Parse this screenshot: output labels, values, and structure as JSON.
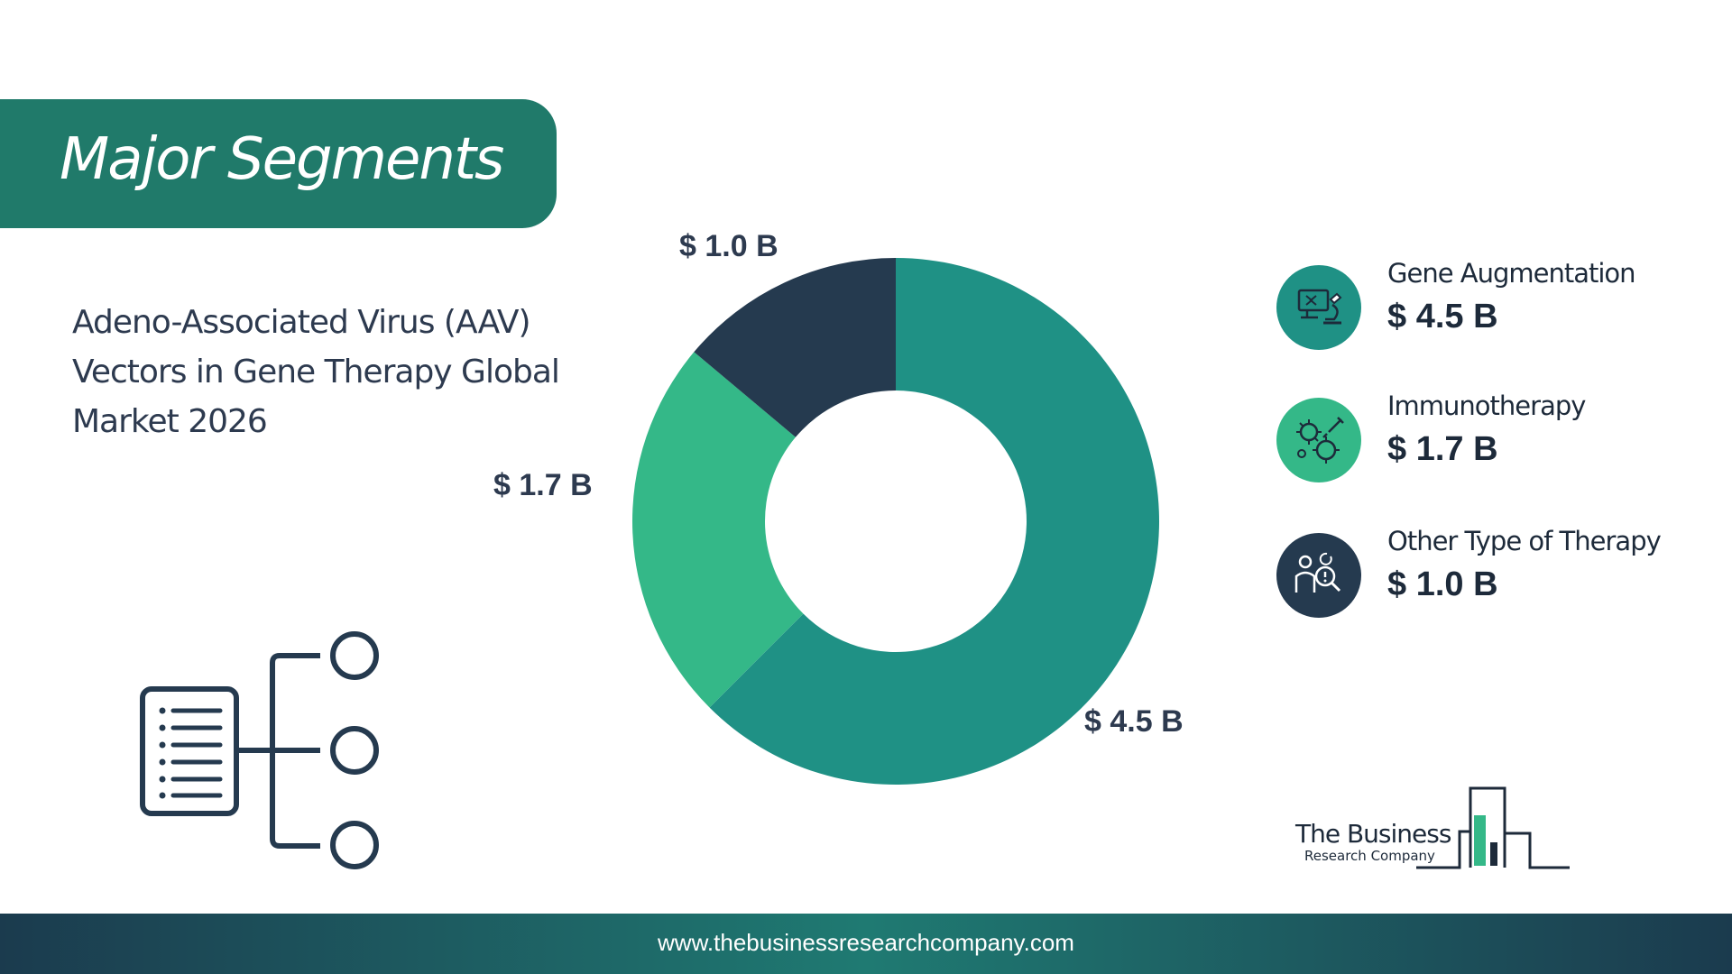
{
  "header": {
    "title": "Major Segments"
  },
  "subtitle": {
    "lines": [
      "Adeno-Associated Virus (AAV)",
      "Vectors in Gene Therapy Global",
      "Market 2026"
    ]
  },
  "chart_data": {
    "type": "pie",
    "donut": true,
    "categories": [
      "Gene Augmentation",
      "Immunotherapy",
      "Other Type of Therapy"
    ],
    "values": [
      4.5,
      1.7,
      1.0
    ],
    "unit": "$ B",
    "data_labels": [
      "$ 4.5 B",
      "$ 1.7 B",
      "$ 1.0 B"
    ],
    "colors": [
      "#1f9185",
      "#34b888",
      "#253a4f"
    ],
    "legend_placement": "right"
  },
  "legend": [
    {
      "name": "Gene Augmentation",
      "value": "$ 4.5 B",
      "icon": "microscope-monitor-icon",
      "color": "#1f9185"
    },
    {
      "name": "Immunotherapy",
      "value": "$ 1.7 B",
      "icon": "virus-syringe-icon",
      "color": "#34b888"
    },
    {
      "name": " Other Type of Therapy",
      "value": "$ 1.0 B",
      "icon": "person-magnifier-icon",
      "color": "#253a4f"
    }
  ],
  "logo": {
    "line1": "The Business",
    "line2": "Research Company"
  },
  "footer": {
    "url": "www.thebusinessresearchcompany.com"
  }
}
